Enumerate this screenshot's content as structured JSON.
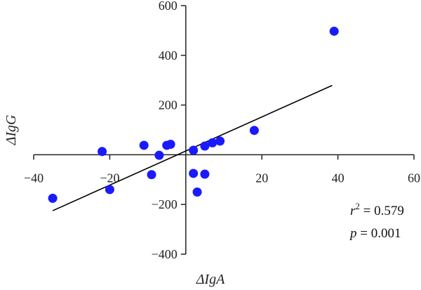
{
  "chart_data": {
    "type": "scatter",
    "title": "",
    "xlabel": "ΔIgA",
    "ylabel": "ΔIgG",
    "xlim": [
      -40,
      60
    ],
    "ylim": [
      -400,
      600
    ],
    "x_ticks": [
      -40,
      -20,
      20,
      40,
      60
    ],
    "y_ticks": [
      600,
      400,
      200,
      -200,
      -400
    ],
    "x_tick_labels": [
      "−40",
      "−20",
      "20",
      "40",
      "60"
    ],
    "y_tick_labels": [
      "600",
      "400",
      "200",
      "−200",
      "−400"
    ],
    "point_color": "#1a1aff",
    "line_color": "#000000",
    "points": [
      {
        "x": 39,
        "y": 497
      },
      {
        "x": 18,
        "y": 98
      },
      {
        "x": 9,
        "y": 55
      },
      {
        "x": 7,
        "y": 48
      },
      {
        "x": 5,
        "y": 35
      },
      {
        "x": 2,
        "y": 18
      },
      {
        "x": -4,
        "y": 42
      },
      {
        "x": -5,
        "y": 38
      },
      {
        "x": -7,
        "y": -2
      },
      {
        "x": -11,
        "y": 38
      },
      {
        "x": -22,
        "y": 13
      },
      {
        "x": -9,
        "y": -80
      },
      {
        "x": 2,
        "y": -75
      },
      {
        "x": 5,
        "y": -78
      },
      {
        "x": 3,
        "y": -150
      },
      {
        "x": -20,
        "y": -140
      },
      {
        "x": -35,
        "y": -175
      }
    ],
    "fit_line": {
      "x": [
        -35,
        38.5
      ],
      "y": [
        -225,
        279
      ]
    },
    "annotations": {
      "r_symbol": "r",
      "r_exp": "2",
      "r_value": " = 0.579",
      "p_symbol": "p",
      "p_value": " = 0.001"
    }
  }
}
